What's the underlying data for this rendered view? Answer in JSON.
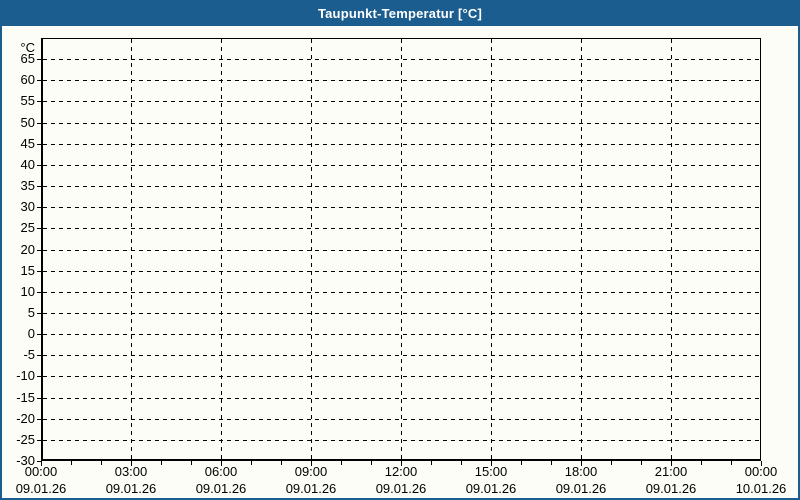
{
  "window": {
    "title": "Taupunkt-Temperatur [°C]"
  },
  "colors": {
    "titlebar_bg": "#1c5d8f",
    "titlebar_text": "#ffffff",
    "window_border": "#1c5d8f",
    "background": "#fdfdf8",
    "axis": "#000000",
    "grid": "#000000",
    "label_text": "#000000"
  },
  "chart_data": {
    "type": "line",
    "title": "Taupunkt-Temperatur [°C]",
    "series": [],
    "grid": true,
    "legend": false,
    "y_axis": {
      "unit": "°C",
      "min": -30,
      "max": 70,
      "tick_step": 5,
      "tick_labels": [
        65,
        60,
        55,
        50,
        45,
        40,
        35,
        30,
        25,
        20,
        15,
        10,
        5,
        0,
        -5,
        -10,
        -15,
        -20,
        -25,
        -30
      ],
      "gridlines_at": [
        65,
        60,
        55,
        50,
        45,
        40,
        35,
        30,
        25,
        20,
        15,
        10,
        5,
        0,
        -5,
        -10,
        -15,
        -20,
        -25
      ]
    },
    "x_axis": {
      "total_hours": 24,
      "minor_tick_step_hours": 1,
      "major_tick_step_hours": 3,
      "gridline_hours": [
        3,
        6,
        9,
        12,
        15,
        18,
        21
      ],
      "ticks": [
        {
          "time": "00:00",
          "date": "09.01.26"
        },
        {
          "time": "03:00",
          "date": "09.01.26"
        },
        {
          "time": "06:00",
          "date": "09.01.26"
        },
        {
          "time": "09:00",
          "date": "09.01.26"
        },
        {
          "time": "12:00",
          "date": "09.01.26"
        },
        {
          "time": "15:00",
          "date": "09.01.26"
        },
        {
          "time": "18:00",
          "date": "09.01.26"
        },
        {
          "time": "21:00",
          "date": "09.01.26"
        },
        {
          "time": "00:00",
          "date": "10.01.26"
        }
      ]
    }
  }
}
